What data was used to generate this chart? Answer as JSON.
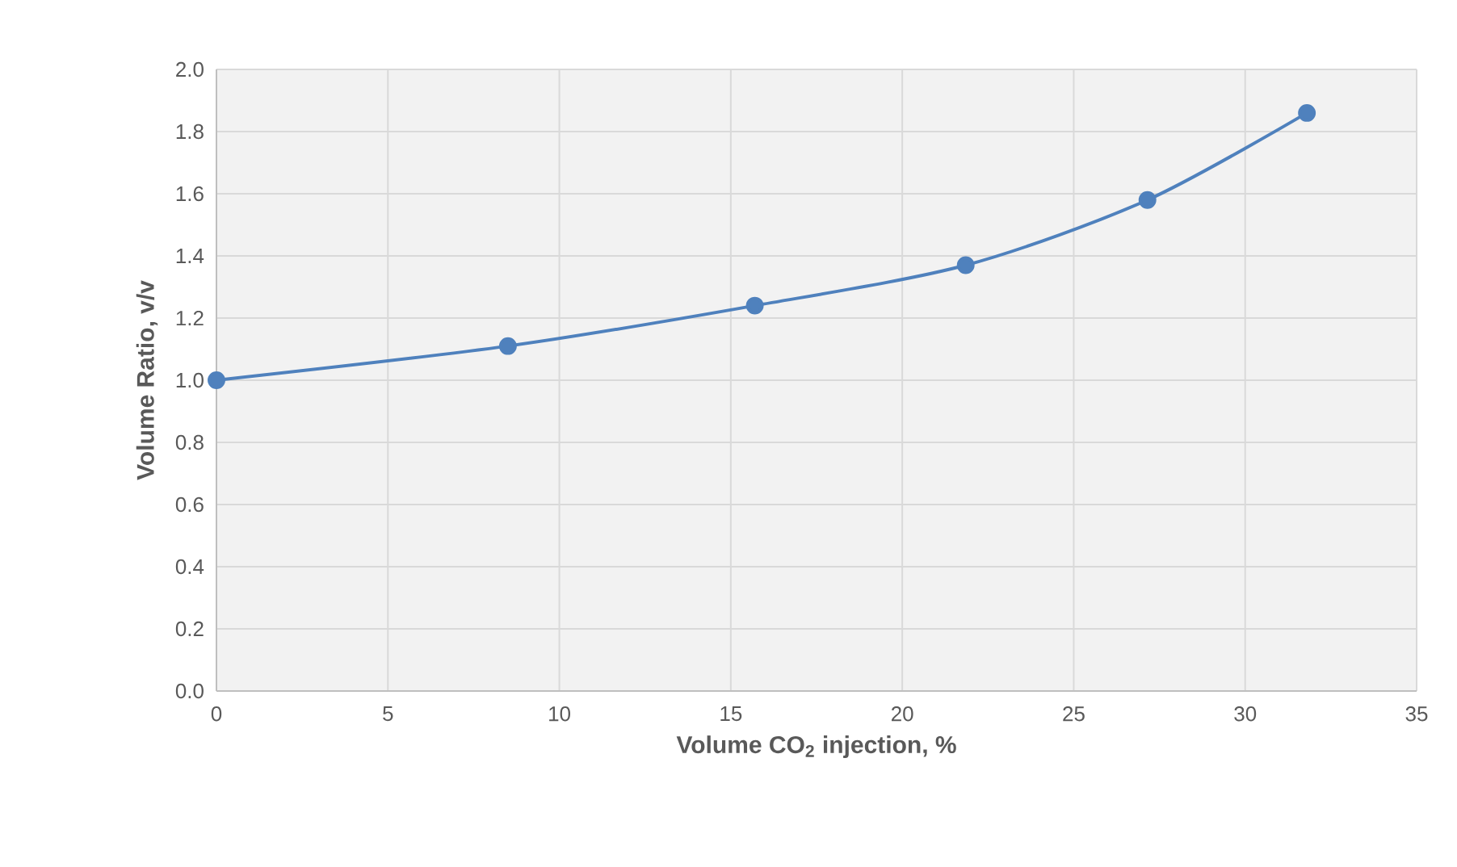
{
  "chart_data": {
    "type": "line",
    "xlabel": "Volume CO$_{2}$ injection, %",
    "ylabel": "Volume Ratio, v/v",
    "x": [
      0,
      8.5,
      15.7,
      21.85,
      27.15,
      31.8
    ],
    "series": [
      {
        "color": "#4f81bd",
        "values": [
          1.0,
          1.11,
          1.24,
          1.37,
          1.58,
          1.86
        ]
      }
    ],
    "xlim": [
      0,
      35
    ],
    "xticks": [
      0,
      5,
      10,
      15,
      20,
      25,
      30,
      35
    ],
    "ylim": [
      0,
      2.0
    ],
    "yticks": [
      {
        "value": 0,
        "label": "0.0"
      },
      {
        "value": 0.2,
        "label": "0.2"
      },
      {
        "value": 0.4,
        "label": "0.4"
      },
      {
        "value": 0.6,
        "label": "0.6"
      },
      {
        "value": 0.8,
        "label": "0.8"
      },
      {
        "value": 1.0,
        "label": "1.0"
      },
      {
        "value": 1.2,
        "label": "1.2"
      },
      {
        "value": 1.4,
        "label": "1.4"
      },
      {
        "value": 1.6,
        "label": "1.6"
      },
      {
        "value": 1.8,
        "label": "1.8"
      },
      {
        "value": 2.0,
        "label": "2.0"
      }
    ],
    "grid": true,
    "marker": "circle",
    "line_style": "solid"
  }
}
